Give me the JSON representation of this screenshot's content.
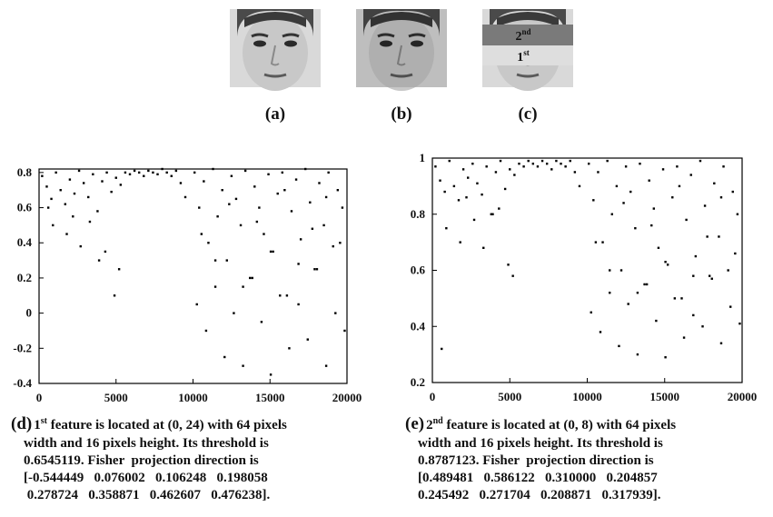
{
  "figure": {
    "panels": [
      {
        "label": "(a)"
      },
      {
        "label": "(b)"
      },
      {
        "label": "(c)",
        "regions": [
          {
            "num": "2",
            "sup": "nd"
          },
          {
            "num": "1",
            "sup": "st"
          }
        ]
      }
    ]
  },
  "chart_data": [
    {
      "type": "scatter",
      "color": "#000000",
      "xlim": [
        0,
        20000
      ],
      "xticks": [
        0,
        5000,
        10000,
        15000,
        20000
      ],
      "ylim": [
        -0.4,
        0.82
      ],
      "yticks": [
        -0.4,
        -0.2,
        0,
        0.2,
        0.4,
        0.6,
        0.8
      ],
      "series": [
        {
          "x": [
            200,
            500,
            800,
            1100,
            1400,
            1700,
            2000,
            2300,
            2600,
            2900,
            3200,
            3500,
            3800,
            4100,
            4400,
            4700,
            5000,
            5300,
            5600,
            5900,
            6200,
            6500,
            6800,
            7100,
            7400,
            7700,
            8000,
            8300,
            8600,
            8900,
            9200,
            9500,
            900,
            1800,
            2700,
            3300,
            4300,
            4900,
            600,
            2200,
            3900,
            5200,
            10100,
            10400,
            10700,
            11000,
            11300,
            11600,
            11900,
            12200,
            12500,
            12800,
            13100,
            13400,
            13700,
            14000,
            14300,
            14600,
            14900,
            15200,
            15500,
            15800,
            16100,
            16400,
            16700,
            17000,
            17300,
            17600,
            17900,
            18200,
            18500,
            18800,
            19100,
            19400,
            19700,
            10250,
            10850,
            11450,
            12050,
            12650,
            13250,
            13850,
            14450,
            15050,
            15650,
            16250,
            16850,
            17450,
            18050,
            18650,
            19250,
            19850,
            10550,
            11450,
            12350,
            13250,
            14150,
            15050,
            15950,
            16850,
            17750,
            18650,
            19550
          ],
          "values": [
            0.78,
            0.72,
            0.65,
            0.8,
            0.7,
            0.62,
            0.76,
            0.68,
            0.81,
            0.74,
            0.66,
            0.79,
            0.58,
            0.75,
            0.8,
            0.69,
            0.77,
            0.73,
            0.8,
            0.79,
            0.81,
            0.8,
            0.78,
            0.81,
            0.8,
            0.79,
            0.82,
            0.8,
            0.78,
            0.81,
            0.74,
            0.66,
            0.5,
            0.45,
            0.38,
            0.52,
            0.35,
            0.1,
            0.6,
            0.55,
            0.3,
            0.25,
            0.8,
            0.6,
            0.75,
            0.4,
            0.82,
            0.55,
            0.7,
            0.3,
            0.78,
            0.65,
            0.5,
            0.81,
            0.2,
            0.72,
            0.6,
            0.45,
            0.79,
            0.35,
            0.68,
            0.8,
            0.1,
            0.58,
            0.76,
            0.42,
            0.82,
            0.63,
            0.25,
            0.74,
            0.5,
            0.8,
            0.38,
            0.7,
            0.6,
            0.05,
            -0.1,
            0.15,
            -0.25,
            0.0,
            -0.3,
            0.2,
            -0.05,
            -0.35,
            0.1,
            -0.2,
            0.05,
            -0.15,
            0.25,
            -0.3,
            0.0,
            -0.1,
            0.45,
            0.3,
            0.62,
            0.15,
            0.52,
            0.35,
            0.7,
            0.28,
            0.48,
            0.66,
            0.4
          ]
        }
      ],
      "caption": {
        "label": "(d)",
        "num": "1",
        "sup": "st",
        "first": " feature is located at (0, 24) with 64 pixels",
        "lines": [
          "width and 16 pixels height. Its threshold is",
          "0.6545119. Fisher  projection direction is",
          "[-0.544449   0.076002   0.106248   0.198058",
          " 0.278724   0.358871   0.462607   0.476238]."
        ]
      }
    },
    {
      "type": "scatter",
      "color": "#000000",
      "xlim": [
        0,
        20000
      ],
      "xticks": [
        0,
        5000,
        10000,
        15000,
        20000
      ],
      "ylim": [
        0.2,
        1
      ],
      "yticks": [
        0.2,
        0.4,
        0.6,
        0.8,
        1
      ],
      "series": [
        {
          "x": [
            200,
            500,
            800,
            1100,
            1400,
            1700,
            2000,
            2300,
            2600,
            2900,
            3200,
            3500,
            3800,
            4100,
            4400,
            4700,
            5000,
            5300,
            5600,
            5900,
            6200,
            6500,
            6800,
            7100,
            7400,
            7700,
            8000,
            8300,
            8600,
            8900,
            9200,
            9500,
            900,
            1800,
            2700,
            3300,
            4300,
            4900,
            600,
            2200,
            3900,
            5200,
            10100,
            10400,
            10700,
            11000,
            11300,
            11600,
            11900,
            12200,
            12500,
            12800,
            13100,
            13400,
            13700,
            14000,
            14300,
            14600,
            14900,
            15200,
            15500,
            15800,
            16100,
            16400,
            16700,
            17000,
            17300,
            17600,
            17900,
            18200,
            18500,
            18800,
            19100,
            19400,
            19700,
            10250,
            10850,
            11450,
            12050,
            12650,
            13250,
            13850,
            14450,
            15050,
            15650,
            16250,
            16850,
            17450,
            18050,
            18650,
            19250,
            19850,
            10550,
            11450,
            12350,
            13250,
            14150,
            15050,
            15950,
            16850,
            17750,
            18650,
            19550
          ],
          "values": [
            0.97,
            0.92,
            0.88,
            0.99,
            0.9,
            0.85,
            0.96,
            0.93,
            0.98,
            0.91,
            0.87,
            0.97,
            0.8,
            0.95,
            0.99,
            0.89,
            0.96,
            0.94,
            0.98,
            0.97,
            0.99,
            0.98,
            0.97,
            0.99,
            0.98,
            0.96,
            0.99,
            0.98,
            0.97,
            0.99,
            0.95,
            0.9,
            0.75,
            0.7,
            0.78,
            0.68,
            0.82,
            0.62,
            0.32,
            0.86,
            0.8,
            0.58,
            0.98,
            0.85,
            0.95,
            0.7,
            0.99,
            0.8,
            0.9,
            0.6,
            0.97,
            0.88,
            0.75,
            0.98,
            0.55,
            0.92,
            0.82,
            0.68,
            0.96,
            0.62,
            0.86,
            0.97,
            0.5,
            0.78,
            0.94,
            0.65,
            0.99,
            0.83,
            0.58,
            0.91,
            0.72,
            0.97,
            0.6,
            0.88,
            0.8,
            0.45,
            0.38,
            0.52,
            0.33,
            0.48,
            0.3,
            0.55,
            0.42,
            0.29,
            0.5,
            0.36,
            0.44,
            0.4,
            0.57,
            0.34,
            0.47,
            0.41,
            0.7,
            0.6,
            0.84,
            0.52,
            0.76,
            0.63,
            0.9,
            0.58,
            0.72,
            0.86,
            0.66
          ]
        }
      ],
      "caption": {
        "label": "(e)",
        "num": "2",
        "sup": "nd",
        "first": " feature is located at (0, 8) with 64 pixels",
        "lines": [
          "width and 16 pixels height. Its threshold is",
          "0.8787123. Fisher  projection direction is",
          "[0.489481   0.586122   0.310000   0.204857",
          "0.245492   0.271704   0.208871   0.317939]."
        ]
      }
    }
  ]
}
